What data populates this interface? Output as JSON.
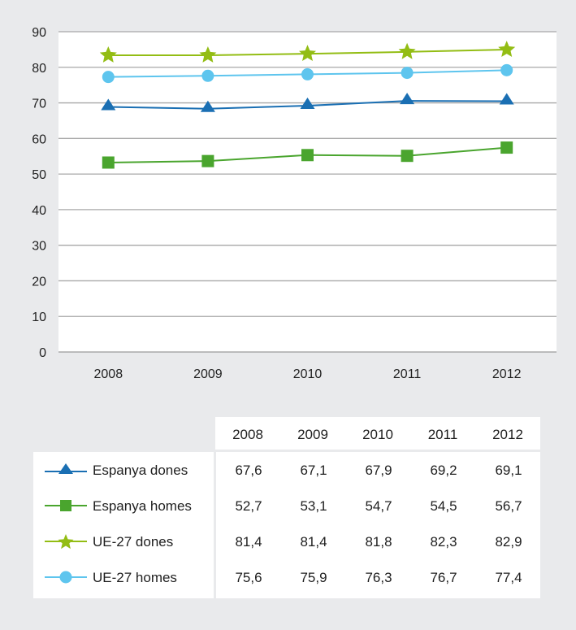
{
  "chart_data": {
    "type": "line",
    "title": "",
    "xlabel": "",
    "ylabel": "",
    "categories": [
      "2008",
      "2009",
      "2010",
      "2011",
      "2012"
    ],
    "ylim": [
      0,
      90
    ],
    "yticks": [
      "0",
      "10",
      "20",
      "30",
      "40",
      "50",
      "60",
      "70",
      "80",
      "90"
    ],
    "grid": true,
    "legend_position": "bottom-table",
    "series": [
      {
        "name": "Espanya dones",
        "marker": "triangle",
        "color": "#1a6fb3",
        "values": [
          67.6,
          67.1,
          67.9,
          69.2,
          69.1
        ],
        "display": [
          "67,6",
          "67,1",
          "67,9",
          "69,2",
          "69,1"
        ]
      },
      {
        "name": "Espanya homes",
        "marker": "square",
        "color": "#4aa52e",
        "values": [
          52.7,
          53.1,
          54.7,
          54.5,
          56.7
        ],
        "display": [
          "52,7",
          "53,1",
          "54,7",
          "54,5",
          "56,7"
        ]
      },
      {
        "name": "UE-27 dones",
        "marker": "star",
        "color": "#93bd14",
        "values": [
          81.4,
          81.4,
          81.8,
          82.3,
          82.9
        ],
        "display": [
          "81,4",
          "81,4",
          "81,8",
          "82,3",
          "82,9"
        ]
      },
      {
        "name": "UE-27 homes",
        "marker": "circle",
        "color": "#5ec5ee",
        "values": [
          75.6,
          75.9,
          76.3,
          76.7,
          77.4
        ],
        "display": [
          "75,6",
          "75,9",
          "76,3",
          "76,7",
          "77,4"
        ]
      }
    ]
  }
}
